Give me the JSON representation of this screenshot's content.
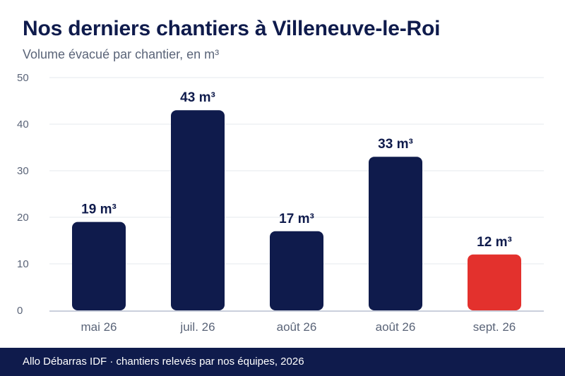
{
  "header": {
    "title": "Nos derniers chantiers à Villeneuve-le-Roi",
    "subtitle": "Volume évacué par chantier, en m³"
  },
  "footer": {
    "text": "Allo Débarras IDF · chantiers relevés par nos équipes, 2026"
  },
  "colors": {
    "bar": "#0f1b4c",
    "highlight": "#e3312d",
    "grid": "#e6e8ee",
    "axis": "#b9bfd0",
    "tick": "#5a6478"
  },
  "chart_data": {
    "type": "bar",
    "title": "Nos derniers chantiers à Villeneuve-le-Roi",
    "subtitle": "Volume évacué par chantier, en m³",
    "xlabel": "",
    "ylabel": "",
    "ylim": [
      0,
      50
    ],
    "yticks": [
      0,
      10,
      20,
      30,
      40,
      50
    ],
    "grid": true,
    "categories": [
      "mai 26",
      "juil. 26",
      "août 26",
      "août 26",
      "sept. 26"
    ],
    "values": [
      19,
      43,
      17,
      33,
      12
    ],
    "data_labels": [
      "19 m³",
      "43 m³",
      "17 m³",
      "33 m³",
      "12 m³"
    ],
    "highlight_index": 4
  }
}
